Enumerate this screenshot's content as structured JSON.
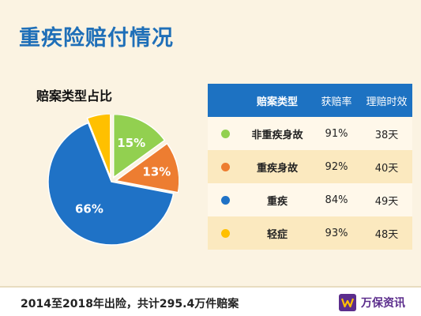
{
  "page": {
    "title": "重疾险赔付情况",
    "footer": "2014至2018年出险，共计295.4万件赔案",
    "brand": "万保资讯"
  },
  "chart_data": {
    "type": "pie",
    "title": "赔案类型占比",
    "slices": [
      {
        "label": "非重疾身故",
        "value": 15,
        "display": "15%",
        "color": "#92d050"
      },
      {
        "label": "重疾身故",
        "value": 13,
        "display": "13%",
        "color": "#ed7d31"
      },
      {
        "label": "重疾",
        "value": 66,
        "display": "66%",
        "color": "#1f72c6"
      },
      {
        "label": "轻症",
        "value": 6,
        "display": "",
        "color": "#ffc000"
      }
    ]
  },
  "table": {
    "headers": [
      "",
      "赔案类型",
      "获赔率",
      "理赔时效"
    ],
    "rows": [
      {
        "type": "非重疾身故",
        "rate": "91%",
        "time": "38天",
        "color": "#92d050"
      },
      {
        "type": "重疾身故",
        "rate": "92%",
        "time": "40天",
        "color": "#ed7d31"
      },
      {
        "type": "重疾",
        "rate": "84%",
        "time": "49天",
        "color": "#1f72c6"
      },
      {
        "type": "轻症",
        "rate": "93%",
        "time": "48天",
        "color": "#ffc000"
      }
    ]
  }
}
